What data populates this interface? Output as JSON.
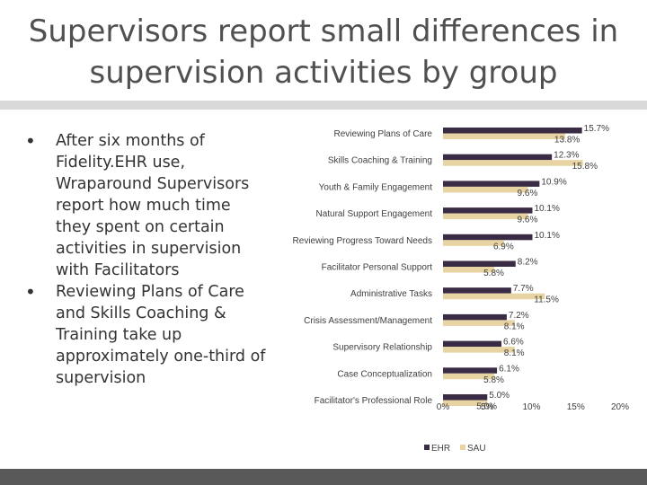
{
  "slide": {
    "title": "Supervisors report small differences in supervision activities by group",
    "bullets": [
      "After six months of Fidelity.EHR use, Wraparound Supervisors report how much time they spent on certain activities in supervision with Facilitators",
      "Reviewing Plans of Care and Skills Coaching & Training take up approximately one-third of supervision"
    ]
  },
  "chart_data": {
    "type": "bar",
    "orientation": "horizontal",
    "categories": [
      "Reviewing Plans of Care",
      "Skills Coaching & Training",
      "Youth & Family Engagement",
      "Natural Support Engagement",
      "Reviewing Progress Toward Needs",
      "Facilitator Personal Support",
      "Administrative Tasks",
      "Crisis Assessment/Management",
      "Supervisory Relationship",
      "Case Conceptualization",
      "Facilitator's Professional Role"
    ],
    "series": [
      {
        "name": "EHR",
        "color": "#3b2c46",
        "values": [
          15.7,
          12.3,
          10.9,
          10.1,
          10.1,
          8.2,
          7.7,
          7.2,
          6.6,
          6.1,
          5.0
        ],
        "labels": [
          "15.7%",
          "12.3%",
          "10.9%",
          "10.1%",
          "10.1%",
          "8.2%",
          "7.7%",
          "7.2%",
          "6.6%",
          "6.1%",
          "5.0%"
        ]
      },
      {
        "name": "SAU",
        "color": "#e8d3a2",
        "values": [
          13.8,
          15.8,
          9.6,
          9.6,
          6.9,
          5.8,
          11.5,
          8.1,
          8.1,
          5.8,
          5.0
        ],
        "labels": [
          "13.8%",
          "15.8%",
          "9.6%",
          "9.6%",
          "6.9%",
          "5.8%",
          "11.5%",
          "8.1%",
          "8.1%",
          "5.8%",
          "5.0%"
        ]
      }
    ],
    "xlim": [
      0,
      20
    ],
    "xticks": [
      "0%",
      "5%",
      "10%",
      "15%",
      "20%"
    ],
    "grid": false,
    "legend": "bottom"
  }
}
